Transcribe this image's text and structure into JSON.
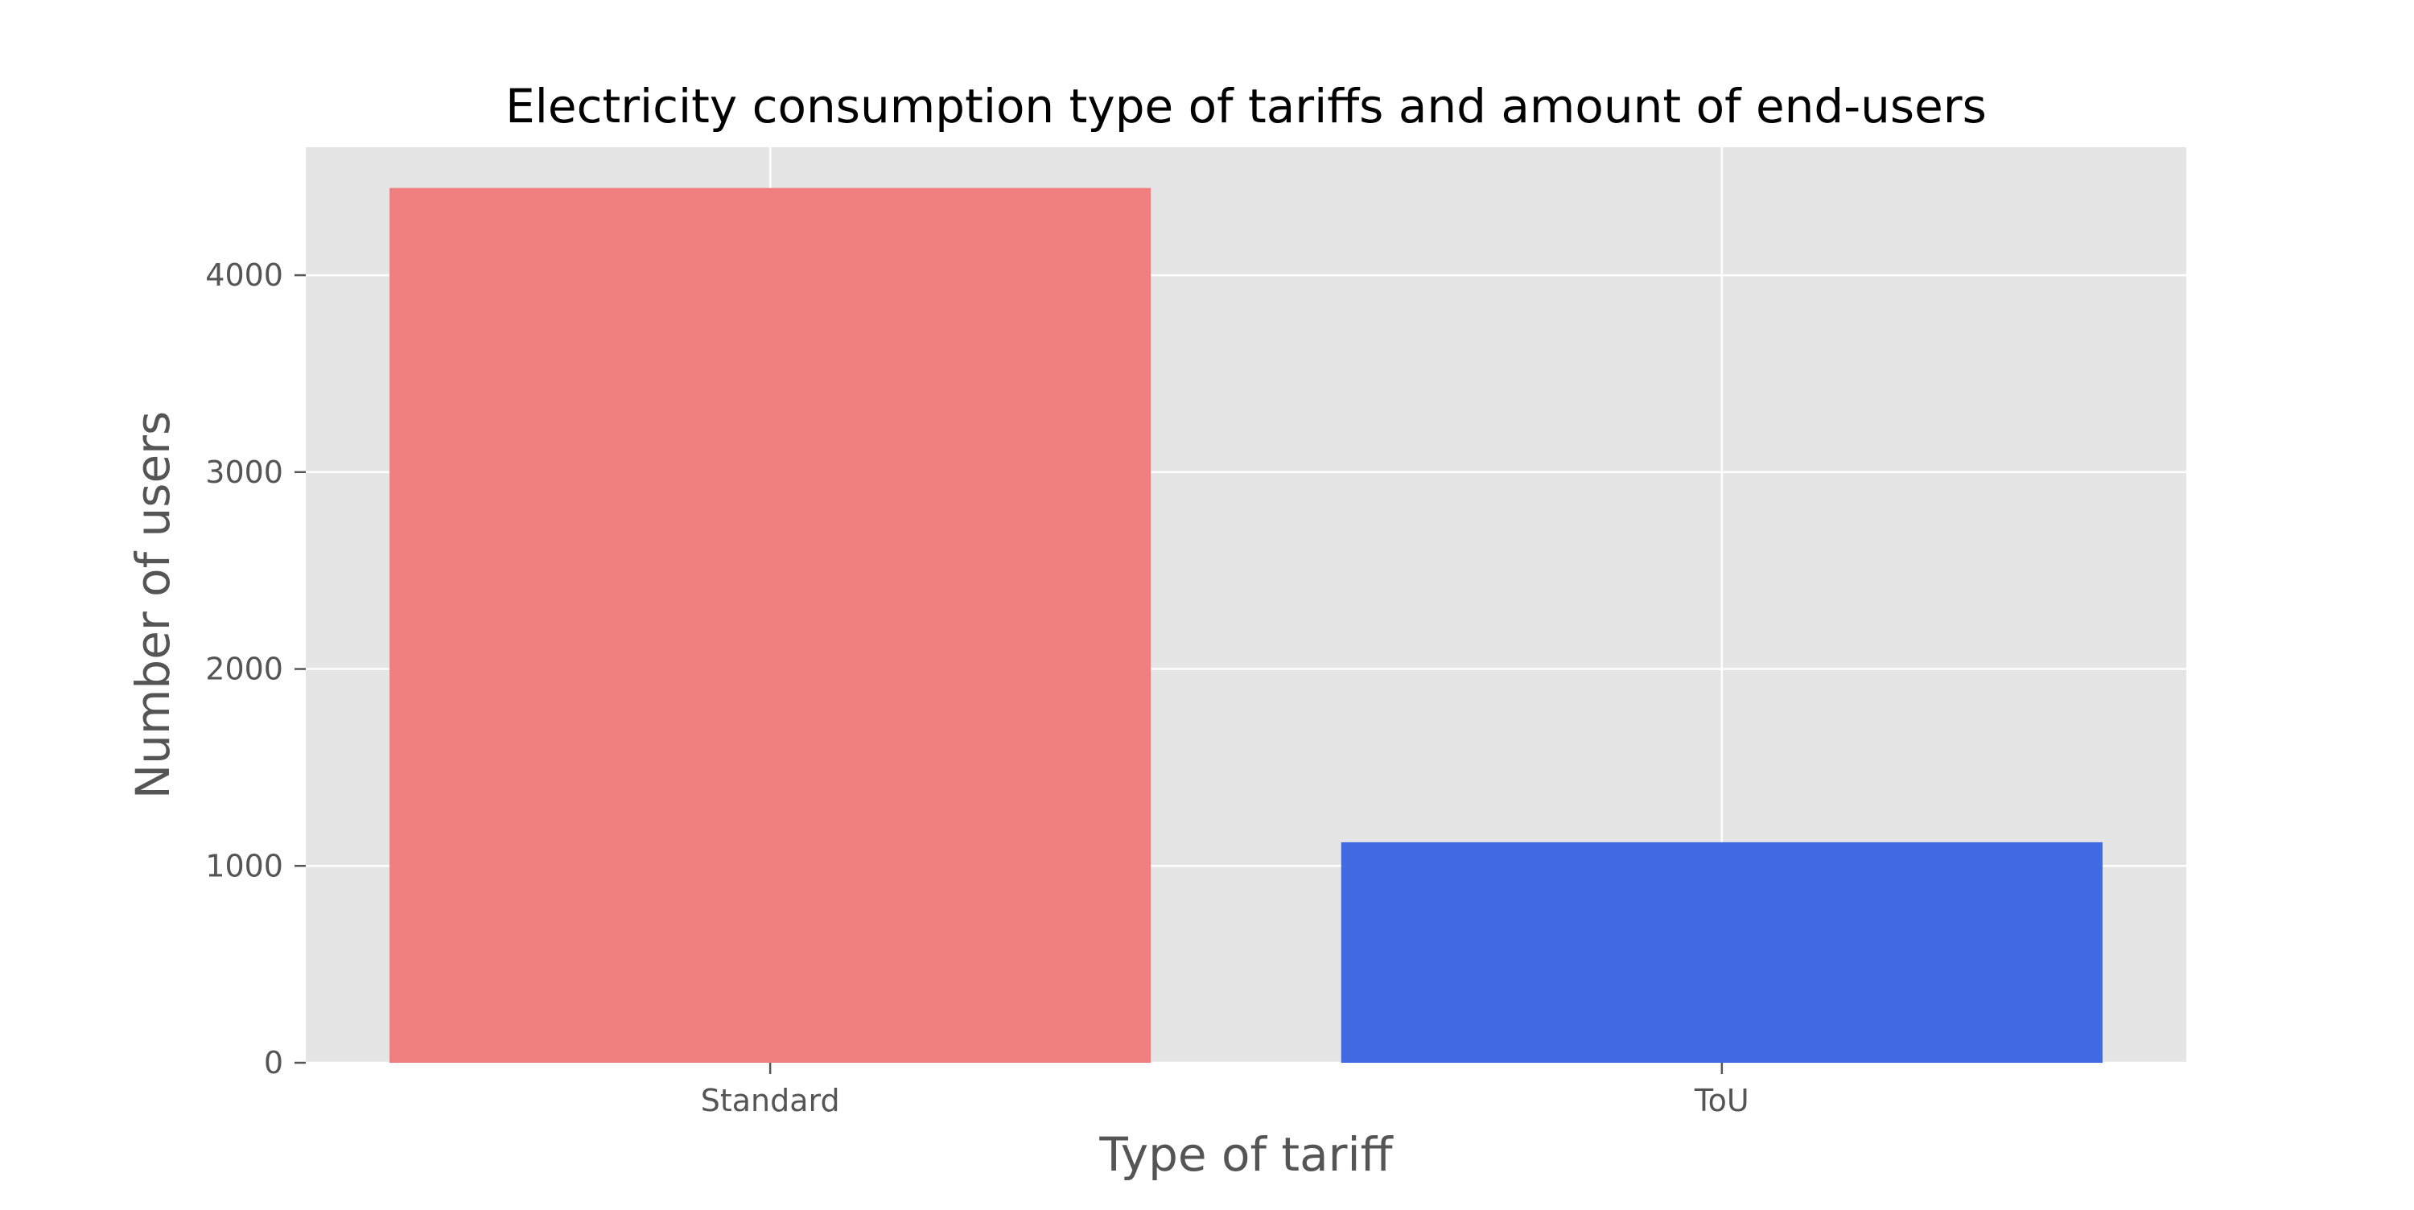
{
  "colors": {
    "background": "#ffffff",
    "plot_background": "#e5e5e5",
    "grid": "#ffffff",
    "text": "#555555",
    "title": "#000000"
  },
  "chart_data": {
    "type": "bar",
    "title": "Electricity consumption type of tariffs and amount of end-users",
    "xlabel": "Type of tariff",
    "ylabel": "Number of users",
    "categories": [
      "Standard",
      "ToU"
    ],
    "values": [
      4443,
      1120
    ],
    "bar_colors": [
      "#f08080",
      "#4169e1"
    ],
    "ylim": [
      0,
      4650
    ],
    "yticks": [
      0,
      1000,
      2000,
      3000,
      4000
    ],
    "grid": true,
    "legend": "none"
  }
}
